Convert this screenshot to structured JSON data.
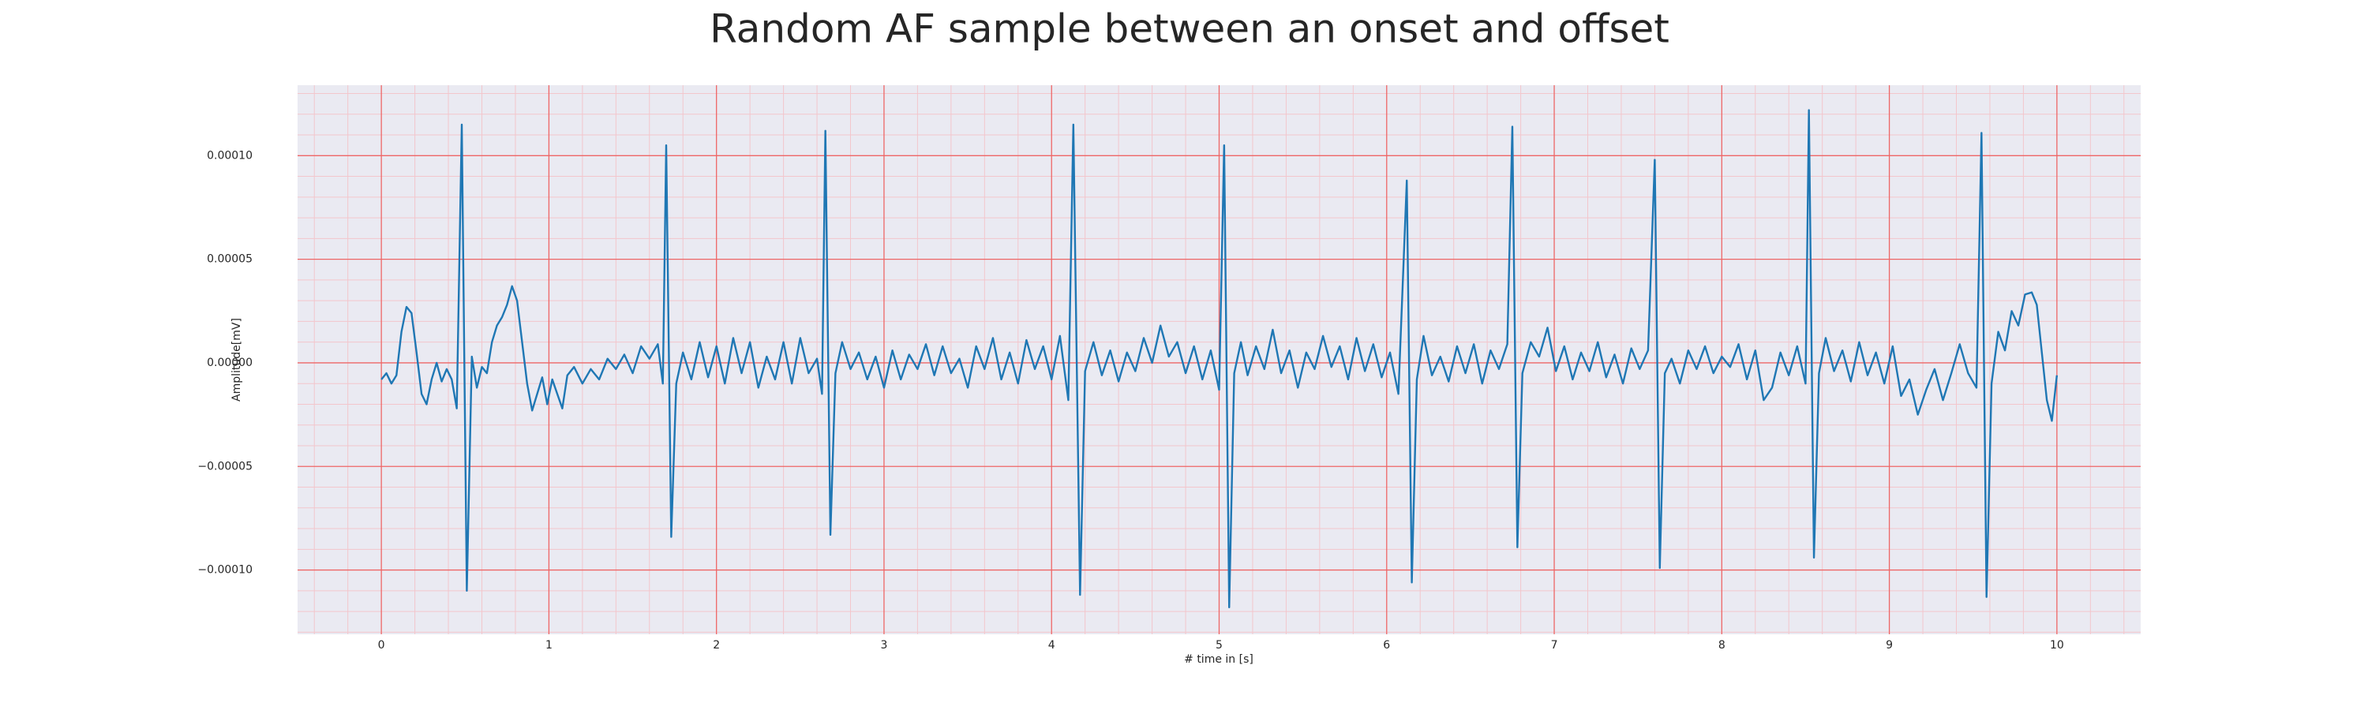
{
  "chart_data": {
    "type": "line",
    "title": "Random AF sample between an onset and offset",
    "x_label": "# time in [s]",
    "y_label": "Amplitude[mV]",
    "xlim": [
      -0.5,
      10.5
    ],
    "ylim": [
      -0.000131,
      0.000134
    ],
    "xticks": [
      0,
      1,
      2,
      3,
      4,
      5,
      6,
      7,
      8,
      9,
      10
    ],
    "yticks": [
      {
        "value": -0.0001,
        "label": "−0.00010"
      },
      {
        "value": -5e-05,
        "label": "−0.00005"
      },
      {
        "value": 0,
        "label": "0.00000"
      },
      {
        "value": 5e-05,
        "label": "0.00005"
      },
      {
        "value": 0.0001,
        "label": "0.00010"
      }
    ],
    "xminorticks": [
      -0.4,
      -0.2,
      0.2,
      0.4,
      0.6,
      0.8,
      1.2,
      1.4,
      1.6,
      1.8,
      2.2,
      2.4,
      2.6,
      2.8,
      3.2,
      3.4,
      3.6,
      3.8,
      4.2,
      4.4,
      4.6,
      4.8,
      5.2,
      5.4,
      5.6,
      5.8,
      6.2,
      6.4,
      6.6,
      6.8,
      7.2,
      7.4,
      7.6,
      7.8,
      8.2,
      8.4,
      8.6,
      8.8,
      9.2,
      9.4,
      9.6,
      9.8,
      10.2,
      10.4
    ],
    "yminorticks": [
      -0.00013,
      -0.00012,
      -0.00011,
      -9e-05,
      -8e-05,
      -7e-05,
      -6e-05,
      -4e-05,
      -3e-05,
      -2e-05,
      -1e-05,
      1e-05,
      2e-05,
      3e-05,
      4e-05,
      6e-05,
      7e-05,
      8e-05,
      9e-05,
      0.00011,
      0.00012,
      0.00013
    ],
    "grid": true,
    "grid_color": "#ee6666",
    "minor_grid_color": "#f3c6cc",
    "background": "#eaeaf2",
    "color": "#1f77b4",
    "x": [
      0.0,
      0.03,
      0.06,
      0.09,
      0.12,
      0.15,
      0.18,
      0.21,
      0.24,
      0.27,
      0.3,
      0.33,
      0.36,
      0.39,
      0.42,
      0.45,
      0.48,
      0.51,
      0.54,
      0.57,
      0.6,
      0.63,
      0.66,
      0.69,
      0.72,
      0.75,
      0.78,
      0.81,
      0.84,
      0.87,
      0.9,
      0.93,
      0.96,
      0.99,
      1.02,
      1.05,
      1.08,
      1.11,
      1.15,
      1.2,
      1.25,
      1.3,
      1.35,
      1.4,
      1.45,
      1.5,
      1.55,
      1.6,
      1.65,
      1.68,
      1.7,
      1.73,
      1.76,
      1.8,
      1.85,
      1.9,
      1.95,
      2.0,
      2.05,
      2.1,
      2.15,
      2.2,
      2.25,
      2.3,
      2.35,
      2.4,
      2.45,
      2.5,
      2.55,
      2.6,
      2.63,
      2.65,
      2.68,
      2.71,
      2.75,
      2.8,
      2.85,
      2.9,
      2.95,
      3.0,
      3.05,
      3.1,
      3.15,
      3.2,
      3.25,
      3.3,
      3.35,
      3.4,
      3.45,
      3.5,
      3.55,
      3.6,
      3.65,
      3.7,
      3.75,
      3.8,
      3.85,
      3.9,
      3.95,
      4.0,
      4.05,
      4.1,
      4.13,
      4.17,
      4.2,
      4.25,
      4.3,
      4.35,
      4.4,
      4.45,
      4.5,
      4.55,
      4.6,
      4.65,
      4.7,
      4.75,
      4.8,
      4.85,
      4.9,
      4.95,
      5.0,
      5.03,
      5.06,
      5.09,
      5.13,
      5.17,
      5.22,
      5.27,
      5.32,
      5.37,
      5.42,
      5.47,
      5.52,
      5.57,
      5.62,
      5.67,
      5.72,
      5.77,
      5.82,
      5.87,
      5.92,
      5.97,
      6.02,
      6.07,
      6.12,
      6.15,
      6.18,
      6.22,
      6.27,
      6.32,
      6.37,
      6.42,
      6.47,
      6.52,
      6.57,
      6.62,
      6.67,
      6.72,
      6.75,
      6.78,
      6.81,
      6.86,
      6.91,
      6.96,
      7.01,
      7.06,
      7.11,
      7.16,
      7.21,
      7.26,
      7.31,
      7.36,
      7.41,
      7.46,
      7.51,
      7.56,
      7.6,
      7.63,
      7.66,
      7.7,
      7.75,
      7.8,
      7.85,
      7.9,
      7.95,
      8.0,
      8.05,
      8.1,
      8.15,
      8.2,
      8.25,
      8.3,
      8.35,
      8.4,
      8.45,
      8.5,
      8.52,
      8.55,
      8.58,
      8.62,
      8.67,
      8.72,
      8.77,
      8.82,
      8.87,
      8.92,
      8.97,
      9.02,
      9.07,
      9.12,
      9.17,
      9.22,
      9.27,
      9.32,
      9.37,
      9.42,
      9.47,
      9.52,
      9.55,
      9.58,
      9.61,
      9.65,
      9.69,
      9.73,
      9.77,
      9.81,
      9.85,
      9.88,
      9.91,
      9.94,
      9.97,
      10.0
    ],
    "values": [
      -8e-06,
      -5e-06,
      -1e-05,
      -6e-06,
      1.5e-05,
      2.7e-05,
      2.4e-05,
      5e-06,
      -1.5e-05,
      -2e-05,
      -8e-06,
      0.0,
      -9e-06,
      -3e-06,
      -8e-06,
      -2.2e-05,
      0.000115,
      -0.00011,
      3e-06,
      -1.2e-05,
      -2e-06,
      -5e-06,
      1e-05,
      1.8e-05,
      2.2e-05,
      2.8e-05,
      3.7e-05,
      3e-05,
      1e-05,
      -1e-05,
      -2.3e-05,
      -1.5e-05,
      -7e-06,
      -2e-05,
      -8e-06,
      -1.5e-05,
      -2.2e-05,
      -6e-06,
      -2e-06,
      -1e-05,
      -3e-06,
      -8e-06,
      2e-06,
      -3e-06,
      4e-06,
      -5e-06,
      8e-06,
      2e-06,
      9e-06,
      -1e-05,
      0.000105,
      -8.4e-05,
      -1e-05,
      5e-06,
      -8e-06,
      1e-05,
      -7e-06,
      8e-06,
      -1e-05,
      1.2e-05,
      -5e-06,
      1e-05,
      -1.2e-05,
      3e-06,
      -8e-06,
      1e-05,
      -1e-05,
      1.2e-05,
      -5e-06,
      2e-06,
      -1.5e-05,
      0.000112,
      -8.3e-05,
      -5e-06,
      1e-05,
      -3e-06,
      5e-06,
      -8e-06,
      3e-06,
      -1.2e-05,
      6e-06,
      -8e-06,
      4e-06,
      -3e-06,
      9e-06,
      -6e-06,
      8e-06,
      -5e-06,
      2e-06,
      -1.2e-05,
      8e-06,
      -3e-06,
      1.2e-05,
      -8e-06,
      5e-06,
      -1e-05,
      1.1e-05,
      -3e-06,
      8e-06,
      -8e-06,
      1.3e-05,
      -1.8e-05,
      0.000115,
      -0.000112,
      -4e-06,
      1e-05,
      -6e-06,
      6e-06,
      -9e-06,
      5e-06,
      -4e-06,
      1.2e-05,
      0.0,
      1.8e-05,
      3e-06,
      1e-05,
      -5e-06,
      8e-06,
      -8e-06,
      6e-06,
      -1.3e-05,
      0.000105,
      -0.000118,
      -5e-06,
      1e-05,
      -6e-06,
      8e-06,
      -3e-06,
      1.6e-05,
      -5e-06,
      6e-06,
      -1.2e-05,
      5e-06,
      -3e-06,
      1.3e-05,
      -2e-06,
      8e-06,
      -8e-06,
      1.2e-05,
      -4e-06,
      9e-06,
      -7e-06,
      5e-06,
      -1.5e-05,
      8.8e-05,
      -0.000106,
      -8e-06,
      1.3e-05,
      -6e-06,
      3e-06,
      -9e-06,
      8e-06,
      -5e-06,
      9e-06,
      -1e-05,
      6e-06,
      -3e-06,
      9e-06,
      0.000114,
      -8.9e-05,
      -5e-06,
      1e-05,
      3e-06,
      1.7e-05,
      -4e-06,
      8e-06,
      -8e-06,
      5e-06,
      -4e-06,
      1e-05,
      -7e-06,
      4e-06,
      -1e-05,
      7e-06,
      -3e-06,
      6e-06,
      9.8e-05,
      -9.9e-05,
      -5e-06,
      2e-06,
      -1e-05,
      6e-06,
      -3e-06,
      8e-06,
      -5e-06,
      3e-06,
      -2e-06,
      9e-06,
      -8e-06,
      6e-06,
      -1.8e-05,
      -1.2e-05,
      5e-06,
      -6e-06,
      8e-06,
      -1e-05,
      0.000122,
      -9.4e-05,
      -5e-06,
      1.2e-05,
      -4e-06,
      6e-06,
      -9e-06,
      1e-05,
      -6e-06,
      5e-06,
      -1e-05,
      8e-06,
      -1.6e-05,
      -8e-06,
      -2.5e-05,
      -1.3e-05,
      -3e-06,
      -1.8e-05,
      -5e-06,
      9e-06,
      -5e-06,
      -1.2e-05,
      0.000111,
      -0.000113,
      -1e-05,
      1.5e-05,
      6e-06,
      2.5e-05,
      1.8e-05,
      3.3e-05,
      3.4e-05,
      2.8e-05,
      5e-06,
      -1.8e-05,
      -2.8e-05,
      -6e-06
    ]
  }
}
